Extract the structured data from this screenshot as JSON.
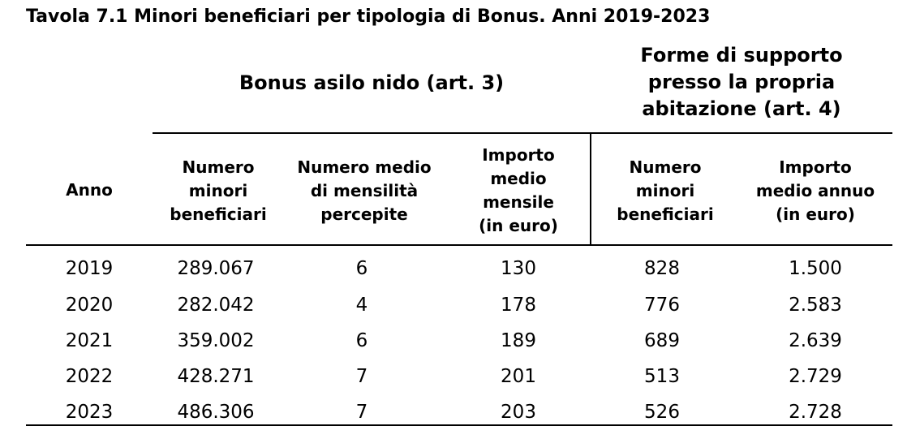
{
  "title": "Tavola 7.1 Minori beneficiari per tipologia di Bonus. Anni 2019-2023",
  "groups": {
    "asilo": "Bonus asilo nido (art. 3)",
    "forme": [
      "Forme di supporto",
      "presso la propria",
      "abitazione  (art. 4)"
    ]
  },
  "headers": {
    "anno": "Anno",
    "numero_minori_asilo": [
      "Numero",
      "minori",
      "beneficiari"
    ],
    "numero_medio": [
      "Numero medio",
      "di mensilità",
      "percepite"
    ],
    "importo_mensile": [
      "Importo",
      "medio",
      "mensile",
      "(in euro)"
    ],
    "numero_minori_forme": [
      "Numero",
      "minori",
      "beneficiari"
    ],
    "importo_annuo": [
      "Importo",
      "medio annuo",
      "(in euro)"
    ]
  },
  "rows": [
    {
      "anno": "2019",
      "minori_asilo": "289.067",
      "mensilita": "6",
      "importo_mensile": "130",
      "minori_forme": "828",
      "importo_annuo": "1.500"
    },
    {
      "anno": "2020",
      "minori_asilo": "282.042",
      "mensilita": "4",
      "importo_mensile": "178",
      "minori_forme": "776",
      "importo_annuo": "2.583"
    },
    {
      "anno": "2021",
      "minori_asilo": "359.002",
      "mensilita": "6",
      "importo_mensile": "189",
      "minori_forme": "689",
      "importo_annuo": "2.639"
    },
    {
      "anno": "2022",
      "minori_asilo": "428.271",
      "mensilita": "7",
      "importo_mensile": "201",
      "minori_forme": "513",
      "importo_annuo": "2.729"
    },
    {
      "anno": "2023",
      "minori_asilo": "486.306",
      "mensilita": "7",
      "importo_mensile": "203",
      "minori_forme": "526",
      "importo_annuo": "2.728"
    }
  ]
}
